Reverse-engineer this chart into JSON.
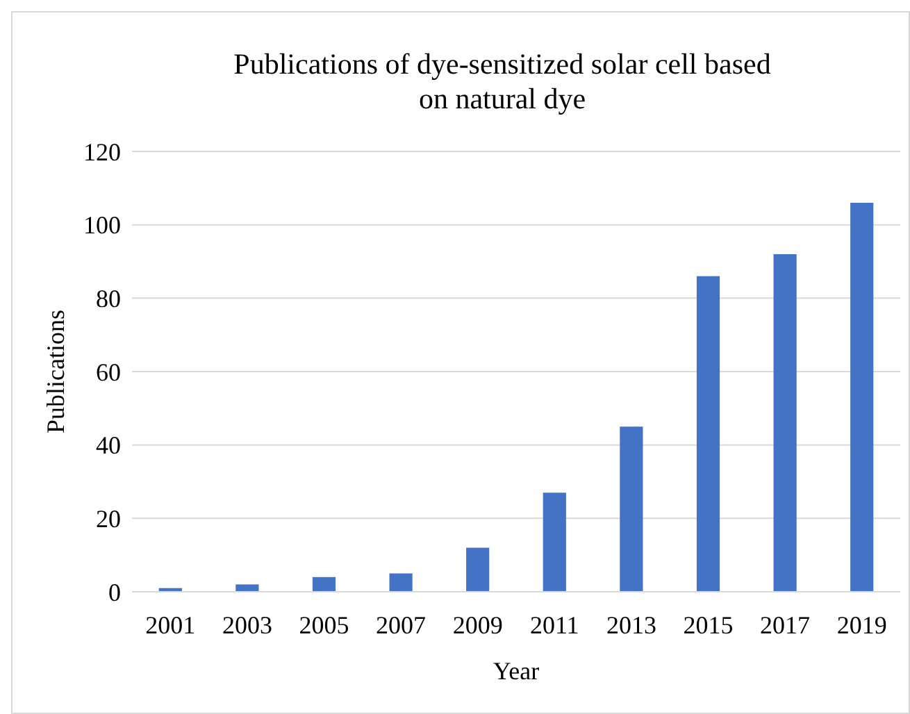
{
  "chart_data": {
    "type": "bar",
    "title": "Publications of dye-sensitized solar cell based on natural dye",
    "xlabel": "Year",
    "ylabel": "Publications",
    "categories": [
      "2001",
      "2003",
      "2005",
      "2007",
      "2009",
      "2011",
      "2013",
      "2015",
      "2017",
      "2019"
    ],
    "values": [
      1,
      2,
      4,
      5,
      12,
      27,
      45,
      86,
      92,
      106
    ],
    "color": "#4472c4",
    "ylim": [
      0,
      120
    ],
    "yticks": [
      0,
      20,
      40,
      60,
      80,
      100,
      120
    ],
    "grid": "y"
  }
}
